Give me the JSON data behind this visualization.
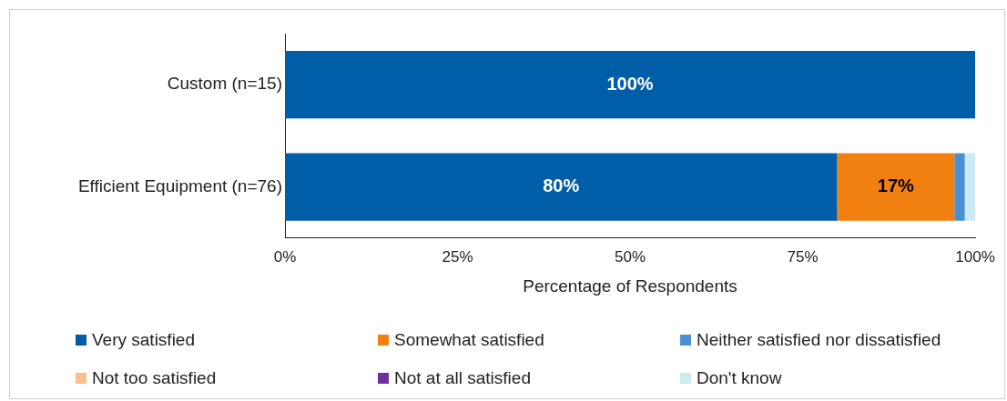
{
  "chart_data": {
    "type": "bar",
    "orientation": "horizontal",
    "stacked": true,
    "xlabel": "Percentage of Respondents",
    "categories": [
      "Custom (n=15)",
      "Efficient Equipment (n=76)"
    ],
    "series": [
      {
        "name": "Very satisfied",
        "color": "#005ea8",
        "values": [
          100,
          80
        ],
        "value_labels": [
          "100%",
          "80%"
        ]
      },
      {
        "name": "Somewhat satisfied",
        "color": "#f28010",
        "values": [
          0,
          17
        ],
        "value_labels": [
          null,
          "17%"
        ]
      },
      {
        "name": "Neither satisfied nor dissatisfied",
        "color": "#4a90d0",
        "values": [
          0,
          1.5
        ]
      },
      {
        "name": "Not too satisfied",
        "color": "#fac090",
        "values": [
          0,
          0
        ]
      },
      {
        "name": "Not at all satisfied",
        "color": "#7030a0",
        "values": [
          0,
          0
        ]
      },
      {
        "name": "Don't know",
        "color": "#cde9f2",
        "values": [
          0,
          1.5
        ]
      }
    ],
    "xlim": [
      0,
      100
    ],
    "xticks": [
      {
        "value": 0,
        "label": "0%"
      },
      {
        "value": 25,
        "label": "25%"
      },
      {
        "value": 50,
        "label": "50%"
      },
      {
        "value": 75,
        "label": "75%"
      },
      {
        "value": 100,
        "label": "100%"
      }
    ],
    "grid": false,
    "legend": "bottom"
  }
}
